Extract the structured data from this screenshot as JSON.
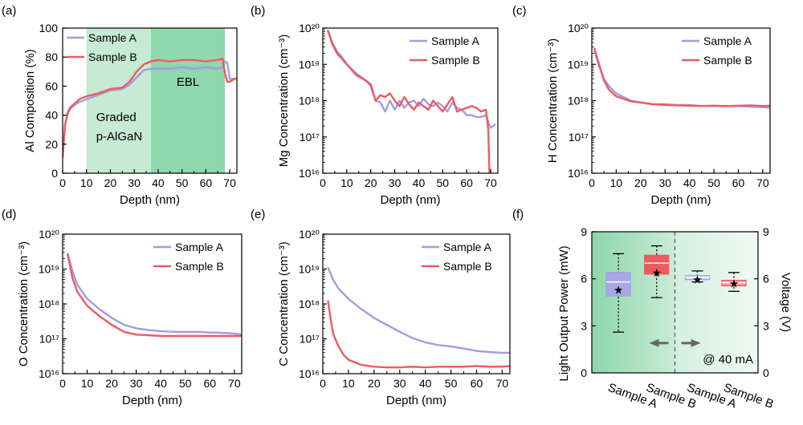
{
  "colors": {
    "sample_a": "#9f9ee0",
    "sample_b": "#ef5a5e",
    "graded_band": "#c6ead3",
    "ebl_band": "#8fd8ad",
    "panel_f_bg": "#e3f4ea"
  },
  "chart_data": [
    {
      "panel": "(a)",
      "type": "line",
      "xlabel": "Depth (nm)",
      "ylabel": "Al Composition (%)",
      "xlim": [
        0,
        73
      ],
      "ylim": [
        0,
        100
      ],
      "xticks": [
        "0",
        "10",
        "20",
        "30",
        "40",
        "50",
        "60",
        "70"
      ],
      "yticks": [
        "0",
        "20",
        "40",
        "60",
        "80",
        "100"
      ],
      "legend": [
        "Sample A",
        "Sample B"
      ],
      "legend_position": "top-left",
      "regions": [
        {
          "label_lines": [
            "Graded",
            "p-AlGaN"
          ],
          "x_range": [
            10,
            37
          ]
        },
        {
          "label_lines": [
            "EBL"
          ],
          "x_range": [
            37,
            68
          ]
        }
      ],
      "series": [
        {
          "name": "Sample A",
          "x": [
            0,
            1,
            2,
            3,
            5,
            7,
            10,
            15,
            20,
            25,
            28,
            31,
            34,
            37,
            40,
            45,
            50,
            55,
            60,
            65,
            67,
            68,
            69,
            70,
            72,
            73
          ],
          "y": [
            11,
            33,
            40,
            44,
            47,
            49,
            51,
            54,
            57,
            58,
            61,
            66,
            71,
            72,
            72,
            72,
            73,
            72,
            73,
            72,
            73,
            77,
            76,
            65,
            65,
            65
          ]
        },
        {
          "name": "Sample B",
          "x": [
            0,
            1,
            2,
            3,
            5,
            7,
            10,
            15,
            20,
            25,
            28,
            31,
            34,
            37,
            40,
            45,
            50,
            55,
            60,
            65,
            67,
            68,
            69,
            70,
            72,
            73
          ],
          "y": [
            11,
            33,
            41,
            45,
            48,
            51,
            53,
            55,
            58,
            59,
            63,
            70,
            75,
            77,
            78,
            77,
            78,
            78,
            77,
            78,
            79,
            69,
            63,
            63,
            65,
            65
          ]
        }
      ]
    },
    {
      "panel": "(b)",
      "type": "line",
      "yscale": "log",
      "xlabel": "Depth (nm)",
      "ylabel": "Mg Concentration (cm⁻³)",
      "xlim": [
        0,
        73
      ],
      "ylim_exp": [
        16,
        20
      ],
      "xticks": [
        "0",
        "10",
        "20",
        "30",
        "40",
        "50",
        "60",
        "70"
      ],
      "legend": [
        "Sample A",
        "Sample B"
      ],
      "legend_position": "top-right",
      "series": [
        {
          "name": "Sample A",
          "x": [
            2,
            4,
            6,
            8,
            10,
            14,
            18,
            20,
            22,
            24,
            26,
            28,
            30,
            32,
            34,
            36,
            38,
            40,
            42,
            44,
            46,
            48,
            50,
            52,
            54,
            56,
            58,
            60,
            62,
            64,
            66,
            68,
            70,
            71,
            72
          ],
          "log_y": [
            19.95,
            19.6,
            19.35,
            19.2,
            19.0,
            18.75,
            18.55,
            18.4,
            18.0,
            17.95,
            17.7,
            18.0,
            17.75,
            18.0,
            17.8,
            17.95,
            18.0,
            17.85,
            18.05,
            17.9,
            17.85,
            17.95,
            17.85,
            17.7,
            17.95,
            17.8,
            17.75,
            17.6,
            17.6,
            17.55,
            17.55,
            17.6,
            17.25,
            17.3,
            17.35
          ]
        },
        {
          "name": "Sample B",
          "x": [
            2,
            4,
            6,
            8,
            10,
            14,
            18,
            20,
            22,
            24,
            26,
            28,
            30,
            32,
            34,
            36,
            38,
            40,
            42,
            44,
            46,
            48,
            50,
            52,
            54,
            56,
            58,
            60,
            62,
            64,
            66,
            68,
            69,
            69.5
          ],
          "log_y": [
            19.95,
            19.55,
            19.3,
            19.15,
            19.0,
            18.7,
            18.55,
            18.45,
            18.0,
            18.15,
            18.1,
            18.2,
            18.0,
            17.85,
            18.1,
            17.9,
            17.75,
            17.95,
            17.85,
            17.75,
            18.0,
            17.85,
            17.7,
            17.9,
            18.1,
            17.7,
            17.75,
            17.8,
            17.85,
            17.8,
            17.7,
            17.75,
            17.2,
            16.0
          ]
        }
      ]
    },
    {
      "panel": "(c)",
      "type": "line",
      "yscale": "log",
      "xlabel": "Depth (nm)",
      "ylabel": "H Concentration (cm⁻³)",
      "xlim": [
        0,
        73
      ],
      "ylim_exp": [
        16,
        20
      ],
      "xticks": [
        "0",
        "10",
        "20",
        "30",
        "40",
        "50",
        "60",
        "70"
      ],
      "legend": [
        "Sample A",
        "Sample B"
      ],
      "legend_position": "top-right",
      "series": [
        {
          "name": "Sample A",
          "x": [
            1,
            3,
            5,
            7,
            10,
            13,
            16,
            20,
            25,
            30,
            35,
            40,
            45,
            50,
            55,
            60,
            65,
            70,
            73
          ],
          "log_y": [
            19.4,
            18.95,
            18.6,
            18.4,
            18.2,
            18.1,
            18.0,
            17.95,
            17.9,
            17.9,
            17.88,
            17.88,
            17.85,
            17.85,
            17.85,
            17.85,
            17.83,
            17.82,
            17.8
          ]
        },
        {
          "name": "Sample B",
          "x": [
            1,
            3,
            5,
            7,
            10,
            13,
            16,
            20,
            25,
            30,
            35,
            40,
            45,
            50,
            55,
            60,
            65,
            70,
            73
          ],
          "log_y": [
            19.45,
            19.0,
            18.55,
            18.3,
            18.12,
            18.05,
            17.98,
            17.95,
            17.9,
            17.88,
            17.87,
            17.86,
            17.85,
            17.86,
            17.85,
            17.86,
            17.87,
            17.85,
            17.86
          ]
        }
      ]
    },
    {
      "panel": "(d)",
      "type": "line",
      "yscale": "log",
      "xlabel": "Depth (nm)",
      "ylabel": "O Concentration (cm⁻³)",
      "xlim": [
        0,
        73
      ],
      "ylim_exp": [
        16,
        20
      ],
      "xticks": [
        "0",
        "10",
        "20",
        "30",
        "40",
        "50",
        "60",
        "70"
      ],
      "legend": [
        "Sample A",
        "Sample B"
      ],
      "legend_position": "top-right",
      "series": [
        {
          "name": "Sample A",
          "x": [
            2,
            4,
            6,
            10,
            15,
            20,
            25,
            30,
            35,
            40,
            45,
            50,
            55,
            60,
            65,
            70,
            73
          ],
          "log_y": [
            19.45,
            18.95,
            18.55,
            18.15,
            17.85,
            17.6,
            17.4,
            17.3,
            17.25,
            17.22,
            17.2,
            17.2,
            17.2,
            17.18,
            17.17,
            17.15,
            17.12
          ]
        },
        {
          "name": "Sample B",
          "x": [
            2,
            4,
            6,
            10,
            15,
            20,
            25,
            30,
            35,
            40,
            45,
            50,
            55,
            60,
            65,
            70,
            73
          ],
          "log_y": [
            19.45,
            18.75,
            18.35,
            17.95,
            17.65,
            17.4,
            17.2,
            17.12,
            17.1,
            17.08,
            17.08,
            17.08,
            17.08,
            17.08,
            17.08,
            17.08,
            17.08
          ]
        }
      ]
    },
    {
      "panel": "(e)",
      "type": "line",
      "yscale": "log",
      "xlabel": "Depth (nm)",
      "ylabel": "C Concentration (cm⁻³)",
      "xlim": [
        0,
        73
      ],
      "ylim_exp": [
        16,
        20
      ],
      "xticks": [
        "0",
        "10",
        "20",
        "30",
        "40",
        "50",
        "60",
        "70"
      ],
      "legend": [
        "Sample A",
        "Sample B"
      ],
      "legend_position": "top-right",
      "series": [
        {
          "name": "Sample A",
          "x": [
            2,
            4,
            6,
            10,
            15,
            20,
            25,
            30,
            35,
            40,
            45,
            50,
            55,
            60,
            65,
            70,
            73
          ],
          "log_y": [
            19.05,
            18.7,
            18.45,
            18.15,
            17.85,
            17.6,
            17.4,
            17.2,
            17.02,
            16.9,
            16.82,
            16.78,
            16.72,
            16.65,
            16.62,
            16.6,
            16.6
          ]
        },
        {
          "name": "Sample B",
          "x": [
            2,
            3,
            4,
            6,
            8,
            10,
            15,
            20,
            25,
            30,
            35,
            40,
            45,
            50,
            55,
            60,
            65,
            70,
            73
          ],
          "log_y": [
            18.1,
            17.6,
            17.15,
            16.8,
            16.55,
            16.4,
            16.25,
            16.2,
            16.18,
            16.18,
            16.2,
            16.18,
            16.2,
            16.2,
            16.2,
            16.22,
            16.2,
            16.2,
            16.22
          ]
        }
      ]
    },
    {
      "panel": "(f)",
      "type": "box",
      "ylabel_left": "Light Output Power (mW)",
      "ylabel_right": "Voltage (V)",
      "ylim": [
        0,
        9
      ],
      "yticks": [
        "0",
        "3",
        "6",
        "9"
      ],
      "categories": [
        "Sample A",
        "Sample B",
        "Sample A",
        "Sample B"
      ],
      "annotation": "@ 40 mA",
      "boxes": [
        {
          "group": "Light Output Power (mW)",
          "name": "Sample A",
          "min": 2.6,
          "q1": 4.9,
          "median": 5.8,
          "q3": 6.4,
          "max": 7.6,
          "mean": 5.3
        },
        {
          "group": "Light Output Power (mW)",
          "name": "Sample B",
          "min": 4.8,
          "q1": 6.3,
          "median": 7.0,
          "q3": 7.5,
          "max": 8.1,
          "mean": 6.4
        },
        {
          "group": "Voltage (V)",
          "name": "Sample A",
          "min": 5.8,
          "q1": 5.95,
          "median": 6.1,
          "q3": 6.2,
          "max": 6.5,
          "mean": 5.95
        },
        {
          "group": "Voltage (V)",
          "name": "Sample B",
          "min": 5.2,
          "q1": 5.55,
          "median": 5.75,
          "q3": 5.9,
          "max": 6.4,
          "mean": 5.7
        }
      ]
    }
  ]
}
